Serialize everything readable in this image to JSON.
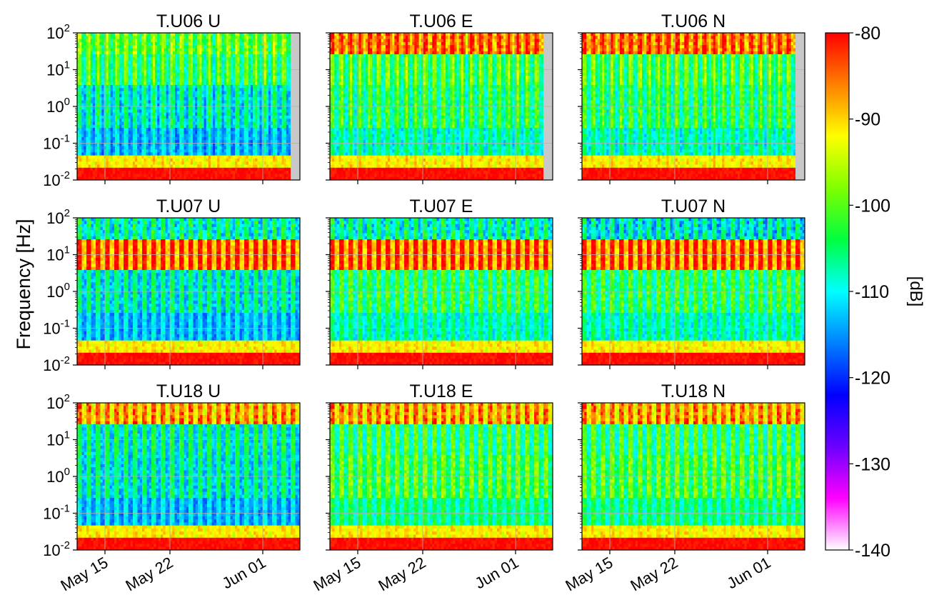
{
  "figure": {
    "ylabel": "Frequency [Hz]",
    "colorbar_label": "[dB]",
    "colorbar_ticks": [
      "-80",
      "-90",
      "-100",
      "-110",
      "-120",
      "-130",
      "-140"
    ],
    "colorbar_range": [
      -140,
      -80
    ],
    "colormap_stops": [
      "#ffffff",
      "#ff00ff",
      "#6a00ff",
      "#0000ff",
      "#0080ff",
      "#00ffff",
      "#00ff40",
      "#80ff00",
      "#ffff00",
      "#ff8000",
      "#ff0000"
    ],
    "grid_color": "#b0b0b0",
    "gap_color": "#c8c8c8"
  },
  "chart_data": [
    {
      "type": "heatmap",
      "title": "T.U06 U",
      "station": "U06",
      "component": "U",
      "ylim": [
        0.01,
        100
      ],
      "yscale": "log",
      "yticks": [
        "10^2",
        "10^1",
        "10^0",
        "10^-1",
        "10^-2"
      ],
      "xticks": [
        "May 15",
        "May 22",
        "Jun 01"
      ],
      "x_tick_dates": [
        "2024-05-15",
        "2024-05-22",
        "2024-06-01"
      ],
      "xlim": [
        "2024-05-12",
        "2024-06-05"
      ],
      "data_end": "2024-06-04",
      "low_band_db": -113,
      "mid_band_db": -103,
      "high_band_db": -100
    },
    {
      "type": "heatmap",
      "title": "T.U06 E",
      "station": "U06",
      "component": "E",
      "ylim": [
        0.01,
        100
      ],
      "yscale": "log",
      "yticks": [
        "10^2",
        "10^1",
        "10^0",
        "10^-1",
        "10^-2"
      ],
      "xticks": [
        "May 15",
        "May 22",
        "Jun 01"
      ],
      "x_tick_dates": [
        "2024-05-15",
        "2024-05-22",
        "2024-06-01"
      ],
      "xlim": [
        "2024-05-12",
        "2024-06-05"
      ],
      "data_end": "2024-06-04",
      "low_band_db": -108,
      "mid_band_db": -102,
      "high_band_db": -85
    },
    {
      "type": "heatmap",
      "title": "T.U06 N",
      "station": "U06",
      "component": "N",
      "ylim": [
        0.01,
        100
      ],
      "yscale": "log",
      "yticks": [
        "10^2",
        "10^1",
        "10^0",
        "10^-1",
        "10^-2"
      ],
      "xticks": [
        "May 15",
        "May 22",
        "Jun 01"
      ],
      "x_tick_dates": [
        "2024-05-15",
        "2024-05-22",
        "2024-06-01"
      ],
      "xlim": [
        "2024-05-12",
        "2024-06-05"
      ],
      "data_end": "2024-06-04",
      "low_band_db": -108,
      "mid_band_db": -102,
      "high_band_db": -85
    },
    {
      "type": "heatmap",
      "title": "T.U07 U",
      "station": "U07",
      "component": "U",
      "ylim": [
        0.01,
        100
      ],
      "yscale": "log",
      "yticks": [
        "10^2",
        "10^1",
        "10^0",
        "10^-1",
        "10^-2"
      ],
      "xticks": [
        "May 15",
        "May 22",
        "Jun 01"
      ],
      "x_tick_dates": [
        "2024-05-15",
        "2024-05-22",
        "2024-06-01"
      ],
      "xlim": [
        "2024-05-12",
        "2024-06-05"
      ],
      "data_end": "2024-06-05",
      "low_band_db": -113,
      "mid_band_db": -85,
      "high_band_db": -108
    },
    {
      "type": "heatmap",
      "title": "T.U07 E",
      "station": "U07",
      "component": "E",
      "ylim": [
        0.01,
        100
      ],
      "yscale": "log",
      "yticks": [
        "10^2",
        "10^1",
        "10^0",
        "10^-1",
        "10^-2"
      ],
      "xticks": [
        "May 15",
        "May 22",
        "Jun 01"
      ],
      "x_tick_dates": [
        "2024-05-15",
        "2024-05-22",
        "2024-06-01"
      ],
      "xlim": [
        "2024-05-12",
        "2024-06-05"
      ],
      "data_end": "2024-06-05",
      "low_band_db": -108,
      "mid_band_db": -85,
      "high_band_db": -108
    },
    {
      "type": "heatmap",
      "title": "T.U07 N",
      "station": "U07",
      "component": "N",
      "ylim": [
        0.01,
        100
      ],
      "yscale": "log",
      "yticks": [
        "10^2",
        "10^1",
        "10^0",
        "10^-1",
        "10^-2"
      ],
      "xticks": [
        "May 15",
        "May 22",
        "Jun 01"
      ],
      "x_tick_dates": [
        "2024-05-15",
        "2024-05-22",
        "2024-06-01"
      ],
      "xlim": [
        "2024-05-12",
        "2024-06-05"
      ],
      "data_end": "2024-06-05",
      "low_band_db": -108,
      "mid_band_db": -85,
      "high_band_db": -110
    },
    {
      "type": "heatmap",
      "title": "T.U18 U",
      "station": "U18",
      "component": "U",
      "ylim": [
        0.01,
        100
      ],
      "yscale": "log",
      "yticks": [
        "10^2",
        "10^1",
        "10^0",
        "10^-1",
        "10^-2"
      ],
      "xticks": [
        "May 15",
        "May 22",
        "Jun 01"
      ],
      "x_tick_dates": [
        "2024-05-15",
        "2024-05-22",
        "2024-06-01"
      ],
      "xlim": [
        "2024-05-12",
        "2024-06-05"
      ],
      "data_end": "2024-06-05",
      "low_band_db": -113,
      "mid_band_db": -108,
      "high_band_db": -88
    },
    {
      "type": "heatmap",
      "title": "T.U18 E",
      "station": "U18",
      "component": "E",
      "ylim": [
        0.01,
        100
      ],
      "yscale": "log",
      "yticks": [
        "10^2",
        "10^1",
        "10^0",
        "10^-1",
        "10^-2"
      ],
      "xticks": [
        "May 15",
        "May 22",
        "Jun 01"
      ],
      "x_tick_dates": [
        "2024-05-15",
        "2024-05-22",
        "2024-06-01"
      ],
      "xlim": [
        "2024-05-12",
        "2024-06-05"
      ],
      "data_end": "2024-06-05",
      "low_band_db": -106,
      "mid_band_db": -104,
      "high_band_db": -88
    },
    {
      "type": "heatmap",
      "title": "T.U18 N",
      "station": "U18",
      "component": "N",
      "ylim": [
        0.01,
        100
      ],
      "yscale": "log",
      "yticks": [
        "10^2",
        "10^1",
        "10^0",
        "10^-1",
        "10^-2"
      ],
      "xticks": [
        "May 15",
        "May 22",
        "Jun 01"
      ],
      "x_tick_dates": [
        "2024-05-15",
        "2024-05-22",
        "2024-06-01"
      ],
      "xlim": [
        "2024-05-12",
        "2024-06-05"
      ],
      "data_end": "2024-06-05",
      "low_band_db": -106,
      "mid_band_db": -104,
      "high_band_db": -88
    }
  ]
}
